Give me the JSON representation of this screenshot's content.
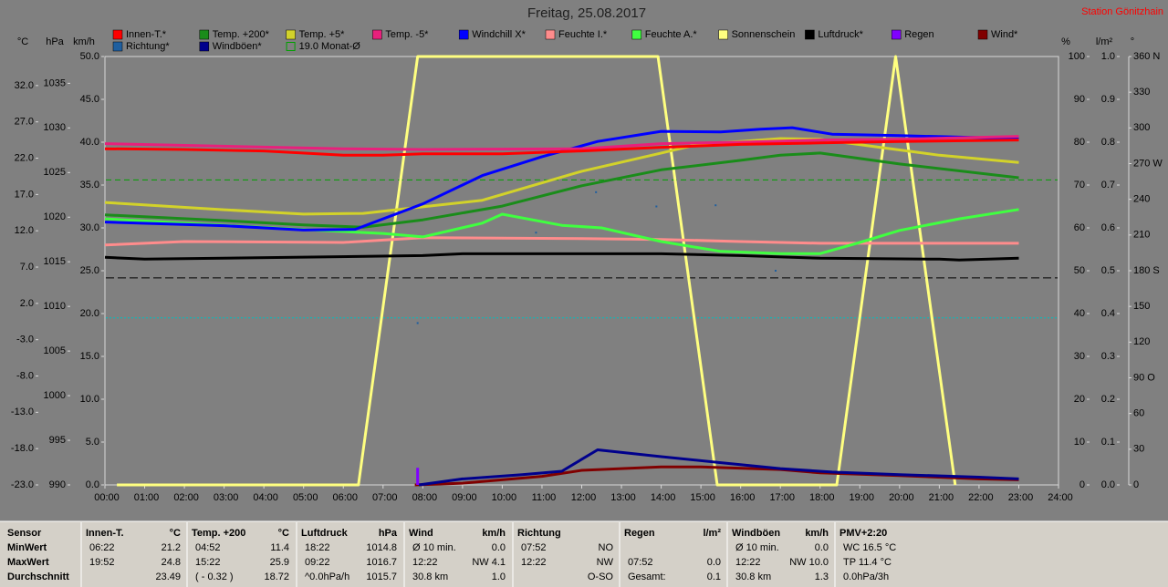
{
  "header": {
    "title": "Freitag, 25.08.2017",
    "station": "Station Gönitzhain"
  },
  "chart_data": {
    "type": "line",
    "grid": false,
    "xlim": [
      0,
      24
    ],
    "xticks": [
      {
        "value": 0,
        "label": "00:00"
      },
      {
        "value": 1,
        "label": "01:00"
      },
      {
        "value": 2,
        "label": "02:00"
      },
      {
        "value": 3,
        "label": "03:00"
      },
      {
        "value": 4,
        "label": "04:00"
      },
      {
        "value": 5,
        "label": "05:00"
      },
      {
        "value": 6,
        "label": "06:00"
      },
      {
        "value": 7,
        "label": "07:00"
      },
      {
        "value": 8,
        "label": "08:00"
      },
      {
        "value": 9,
        "label": "09:00"
      },
      {
        "value": 10,
        "label": "10:00"
      },
      {
        "value": 11,
        "label": "11:00"
      },
      {
        "value": 12,
        "label": "12:00"
      },
      {
        "value": 13,
        "label": "13:00"
      },
      {
        "value": 14,
        "label": "14:00"
      },
      {
        "value": 15,
        "label": "15:00"
      },
      {
        "value": 16,
        "label": "16:00"
      },
      {
        "value": 17,
        "label": "17:00"
      },
      {
        "value": 18,
        "label": "18:00"
      },
      {
        "value": 19,
        "label": "19:00"
      },
      {
        "value": 20,
        "label": "20:00"
      },
      {
        "value": 21,
        "label": "21:00"
      },
      {
        "value": 22,
        "label": "22:00"
      },
      {
        "value": 23,
        "label": "23:00"
      },
      {
        "value": 24,
        "label": "24:00"
      }
    ],
    "axes": {
      "temp": {
        "label": "°C",
        "lim": [
          -23,
          36
        ],
        "ticks": [
          {
            "value": -23,
            "label": "-23.0"
          },
          {
            "value": -18,
            "label": "-18.0"
          },
          {
            "value": -13,
            "label": "-13.0"
          },
          {
            "value": -8,
            "label": "-8.0"
          },
          {
            "value": -3,
            "label": "-3.0"
          },
          {
            "value": 2,
            "label": "2.0"
          },
          {
            "value": 7,
            "label": "7.0"
          },
          {
            "value": 12,
            "label": "12.0"
          },
          {
            "value": 17,
            "label": "17.0"
          },
          {
            "value": 22,
            "label": "22.0"
          },
          {
            "value": 27,
            "label": "27.0"
          },
          {
            "value": 32,
            "label": "32.0"
          }
        ]
      },
      "hPa": {
        "label": "hPa",
        "lim": [
          990,
          1038
        ],
        "ticks": [
          990,
          995,
          1000,
          1005,
          1010,
          1015,
          1020,
          1025,
          1030,
          1035
        ]
      },
      "kmh": {
        "label": "km/h",
        "lim": [
          0,
          50
        ],
        "ticks": [
          {
            "value": 0,
            "label": "0.0"
          },
          {
            "value": 5,
            "label": "5.0"
          },
          {
            "value": 10,
            "label": "10.0"
          },
          {
            "value": 15,
            "label": "15.0"
          },
          {
            "value": 20,
            "label": "20.0"
          },
          {
            "value": 25,
            "label": "25.0"
          },
          {
            "value": 30,
            "label": "30.0"
          },
          {
            "value": 35,
            "label": "35.0"
          },
          {
            "value": 40,
            "label": "40.0"
          },
          {
            "value": 45,
            "label": "45.0"
          },
          {
            "value": 50,
            "label": "50.0"
          }
        ]
      },
      "pct": {
        "label": "%",
        "lim": [
          0,
          100
        ],
        "ticks": [
          0,
          10,
          20,
          30,
          40,
          50,
          60,
          70,
          80,
          90,
          100
        ]
      },
      "rain": {
        "label": "l/m²",
        "lim": [
          0,
          1
        ],
        "ticks": [
          {
            "value": 0,
            "label": "0.0"
          },
          0.1,
          0.2,
          0.3,
          0.4,
          0.5,
          0.6,
          0.7,
          0.8,
          0.9,
          {
            "value": 1,
            "label": "1.0"
          }
        ]
      },
      "deg": {
        "label": "°",
        "lim": [
          0,
          360
        ],
        "ticks": [
          0,
          30,
          60,
          {
            "value": 90,
            "label": "90 O"
          },
          120,
          150,
          {
            "value": 180,
            "label": "180 S"
          },
          210,
          240,
          {
            "value": 270,
            "label": "270 W"
          },
          300,
          330,
          {
            "value": 360,
            "label": "360 N"
          }
        ]
      }
    },
    "series": [
      {
        "name": "Innen-T.*",
        "color": "#ff0000",
        "axis": "temp",
        "style": "line",
        "x": [
          0,
          2,
          4,
          6,
          7,
          8,
          10,
          12,
          14,
          16,
          18,
          20,
          23
        ],
        "values": [
          23.3,
          23.2,
          23.0,
          22.4,
          22.4,
          22.6,
          22.6,
          23.0,
          23.5,
          23.9,
          24.1,
          24.3,
          24.5
        ]
      },
      {
        "name": "Temp. +200*",
        "color": "#1a8c1a",
        "axis": "temp",
        "style": "line",
        "x": [
          0,
          3,
          5,
          6.5,
          8,
          10,
          12,
          14,
          16,
          17,
          18,
          20,
          23
        ],
        "values": [
          14.2,
          13.4,
          12.8,
          12.5,
          13.5,
          15.4,
          18.2,
          20.4,
          21.7,
          22.4,
          22.7,
          21.2,
          19.3
        ]
      },
      {
        "name": "Temp. +5*",
        "color": "#d2d22a",
        "axis": "temp",
        "style": "line",
        "x": [
          0,
          3,
          5,
          6.5,
          8,
          9.5,
          12,
          14,
          15,
          16,
          17,
          18,
          19.5,
          21,
          23
        ],
        "values": [
          15.9,
          14.9,
          14.3,
          14.4,
          15.3,
          16.2,
          20.2,
          22.7,
          24.0,
          24.3,
          24.7,
          24.6,
          23.5,
          22.4,
          21.4
        ]
      },
      {
        "name": "Temp. -5*",
        "color": "#e8207c",
        "axis": "temp",
        "style": "line",
        "x": [
          0,
          6,
          8,
          12,
          14,
          16,
          18,
          20,
          23
        ],
        "values": [
          24.0,
          23.3,
          23.2,
          23.3,
          24.0,
          24.2,
          24.5,
          24.6,
          25.0
        ]
      },
      {
        "name": "Windchill X*",
        "color": "#0000ff",
        "axis": "temp",
        "style": "line",
        "x": [
          0,
          3,
          5,
          6.3,
          8,
          9.5,
          11,
          12.4,
          14,
          15.5,
          16.5,
          17.3,
          18.3,
          20,
          23
        ],
        "values": [
          13.2,
          12.7,
          12.1,
          12.2,
          15.7,
          19.6,
          22.2,
          24.3,
          25.7,
          25.6,
          26.0,
          26.2,
          25.3,
          25.1,
          24.7
        ]
      },
      {
        "name": "Feuchte I.*",
        "color": "#ff8c8c",
        "axis": "pct",
        "style": "line",
        "x": [
          0,
          2,
          6,
          8,
          12,
          14,
          16,
          18,
          23
        ],
        "values": [
          56.0,
          56.8,
          56.6,
          57.7,
          57.5,
          57.3,
          56.8,
          56.4,
          56.4
        ]
      },
      {
        "name": "Feuchte A.*",
        "color": "#40ff40",
        "axis": "pct",
        "style": "line",
        "x": [
          0,
          5,
          7,
          8,
          9.5,
          10,
          11.5,
          12.5,
          14,
          15.5,
          17,
          18,
          19,
          20,
          21.5,
          23
        ],
        "values": [
          62.1,
          59.6,
          58.7,
          57.9,
          61.1,
          63.2,
          60.6,
          60.0,
          56.8,
          54.5,
          54.0,
          54.0,
          56.6,
          59.4,
          62.1,
          64.3
        ]
      },
      {
        "name": "Sonnenschein",
        "color": "#ffff80",
        "axis": "pct",
        "style": "line",
        "x": [
          0.3,
          6.38,
          7.87,
          13.92,
          15.41,
          18.42,
          19.9,
          21.4
        ],
        "values": [
          0,
          0,
          100,
          100,
          0,
          0,
          100,
          0
        ]
      },
      {
        "name": "Luftdruck*",
        "color": "#000000",
        "axis": "hPa",
        "style": "line",
        "x": [
          0,
          1,
          8,
          9,
          14,
          16,
          18,
          21,
          21.5,
          23
        ],
        "values": [
          1015.5,
          1015.3,
          1015.7,
          1015.9,
          1015.9,
          1015.7,
          1015.4,
          1015.3,
          1015.2,
          1015.4
        ]
      },
      {
        "name": "Regen",
        "color": "#8000ff",
        "axis": "rain",
        "style": "bar",
        "x": [
          7.87
        ],
        "values": [
          0.04
        ]
      },
      {
        "name": "Wind*",
        "color": "#800000",
        "axis": "kmh",
        "style": "line",
        "x": [
          7.8,
          9,
          11,
          12,
          14,
          15,
          17,
          18,
          20,
          22,
          23
        ],
        "values": [
          0,
          0.2,
          1.0,
          1.7,
          2.1,
          2.1,
          1.8,
          1.4,
          1.1,
          0.7,
          0.6
        ]
      },
      {
        "name": "Richtung*",
        "color": "#1f5f9f",
        "axis": "deg",
        "style": "dots",
        "x": [
          7.87,
          10.85,
          12.36,
          13.88,
          15.37,
          16.88
        ],
        "values": [
          136,
          212,
          246,
          234,
          235,
          180
        ]
      },
      {
        "name": "Windböen*",
        "color": "#00008c",
        "axis": "kmh",
        "style": "line",
        "x": [
          7.9,
          9,
          10.5,
          11.5,
          12.4,
          14,
          15.5,
          17,
          18.3,
          20,
          22,
          23
        ],
        "values": [
          0,
          0.7,
          1.2,
          1.6,
          4.1,
          3.3,
          2.6,
          1.9,
          1.5,
          1.2,
          0.9,
          0.7
        ]
      }
    ],
    "reference_lines": [
      {
        "name": "19.0 Monat-Ø",
        "value": 19.0,
        "axis": "temp",
        "color": "#00a000",
        "dash": "6 4"
      },
      {
        "value": 0,
        "axis": "temp",
        "color": "#00c0c0",
        "dash": "2 2"
      },
      {
        "value": 1013.2,
        "axis": "hPa",
        "color": "#000000",
        "dash": "9 4"
      }
    ]
  },
  "summary": [
    {
      "title": "Sensor",
      "rows": [
        [
          "MinWert"
        ],
        [
          "MaxWert"
        ],
        [
          "Durchschnitt"
        ]
      ]
    },
    {
      "title": "Innen-T.",
      "unit": "°C",
      "rows": [
        [
          "06:22",
          "21.2"
        ],
        [
          "19:52",
          "24.8"
        ],
        [
          null,
          "23.49"
        ]
      ]
    },
    {
      "title": "Temp. +200",
      "unit": "°C",
      "rows": [
        [
          "04:52",
          "11.4"
        ],
        [
          "15:22",
          "25.9"
        ],
        [
          "( - 0.32 )",
          "18.72"
        ]
      ]
    },
    {
      "title": "Luftdruck",
      "unit": "hPa",
      "rows": [
        [
          "18:22",
          "1014.8"
        ],
        [
          "09:22",
          "1016.7"
        ],
        [
          "^0.0hPa/h",
          "1015.7"
        ]
      ]
    },
    {
      "title": "Wind",
      "unit": "km/h",
      "rows": [
        [
          "Ø 10 min.",
          "0.0"
        ],
        [
          "12:22",
          "NW 4.1"
        ],
        [
          "30.8 km",
          "1.0"
        ]
      ]
    },
    {
      "title": "Richtung",
      "rows": [
        [
          "07:52",
          "NO"
        ],
        [
          "12:22",
          "NW"
        ],
        [
          null,
          "O-SO"
        ]
      ]
    },
    {
      "title": "Regen",
      "unit": "l/m²",
      "rows": [
        [
          null,
          null
        ],
        [
          "07:52",
          "0.0"
        ],
        [
          "Gesamt:",
          "0.1"
        ]
      ]
    },
    {
      "title": "Windböen",
      "unit": "km/h",
      "rows": [
        [
          "Ø 10 min.",
          "0.0"
        ],
        [
          "12:22",
          "NW 10.0"
        ],
        [
          "30.8 km",
          "1.3"
        ]
      ]
    },
    {
      "title": "PMV+2:20",
      "rows": [
        [
          "WC 16.5 °C"
        ],
        [
          "TP 11.4 °C"
        ],
        [
          "0.0hPa/3h"
        ]
      ]
    }
  ]
}
